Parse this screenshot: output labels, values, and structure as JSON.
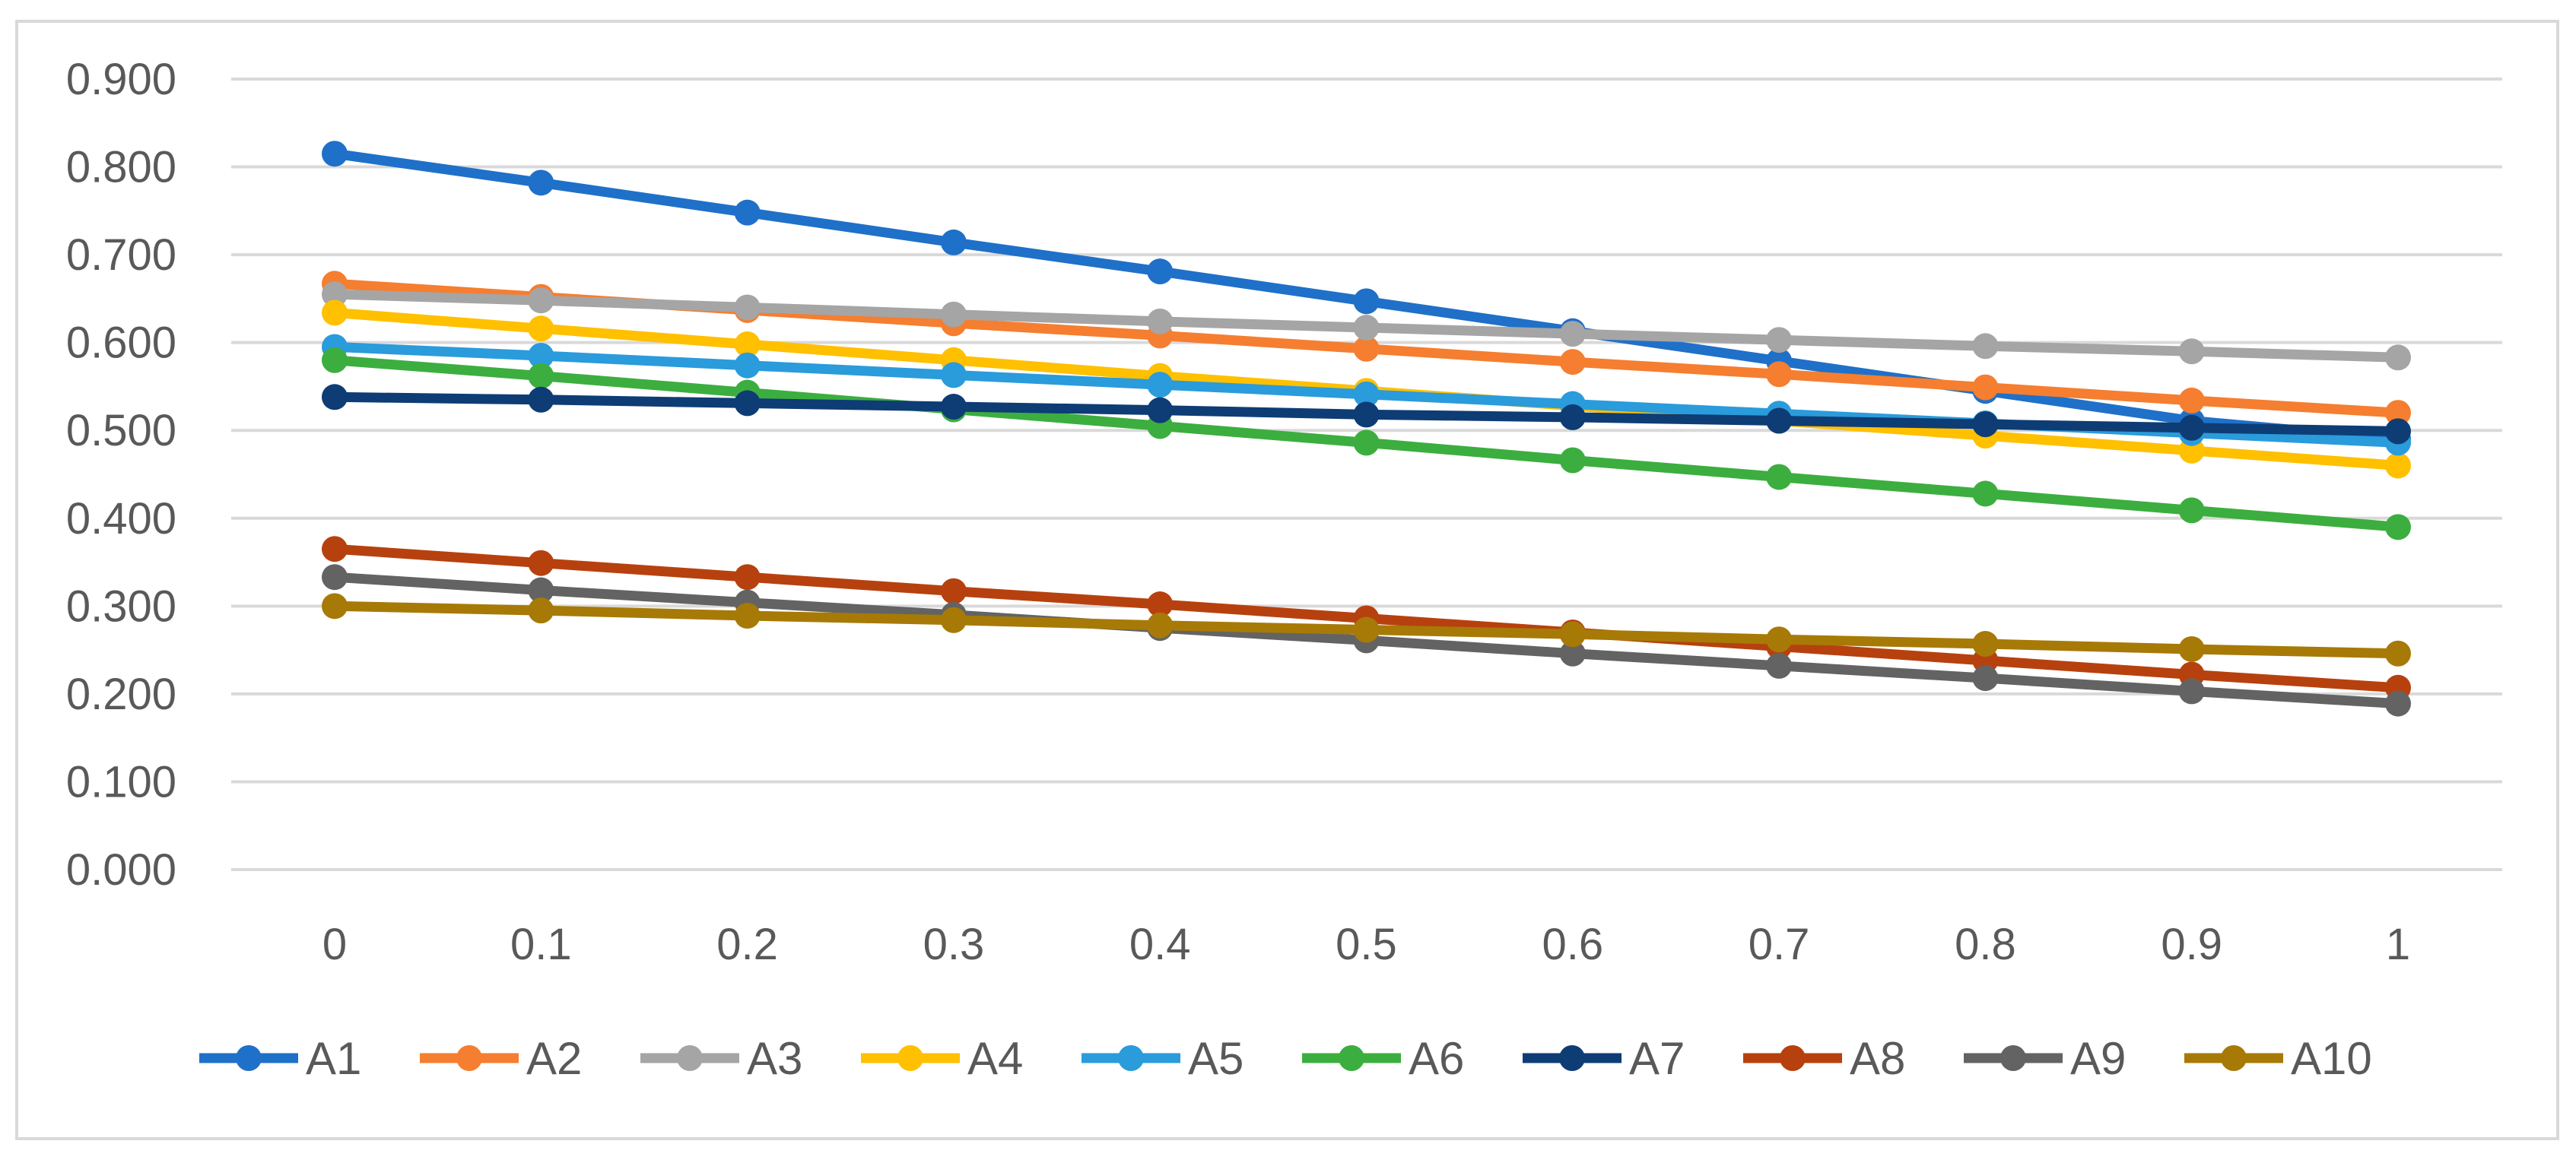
{
  "chart_data": {
    "type": "line",
    "title": "",
    "xlabel": "",
    "ylabel": "",
    "x": [
      "0",
      "0.1",
      "0.2",
      "0.3",
      "0.4",
      "0.5",
      "0.6",
      "0.7",
      "0.8",
      "0.9",
      "1"
    ],
    "ylim": [
      0,
      0.9
    ],
    "y_ticks": [
      "0.000",
      "0.100",
      "0.200",
      "0.300",
      "0.400",
      "0.500",
      "0.600",
      "0.700",
      "0.800",
      "0.900"
    ],
    "grid": true,
    "legend_position": "bottom",
    "series": [
      {
        "name": "A1",
        "color": "#1F70C8",
        "values": [
          0.815,
          0.782,
          0.748,
          0.714,
          0.681,
          0.647,
          0.613,
          0.579,
          0.545,
          0.511,
          0.49
        ]
      },
      {
        "name": "A2",
        "color": "#F57E30",
        "values": [
          0.667,
          0.652,
          0.637,
          0.622,
          0.608,
          0.593,
          0.578,
          0.564,
          0.549,
          0.534,
          0.52
        ]
      },
      {
        "name": "A3",
        "color": "#A5A5A5",
        "values": [
          0.655,
          0.648,
          0.64,
          0.632,
          0.624,
          0.617,
          0.61,
          0.603,
          0.596,
          0.59,
          0.583
        ]
      },
      {
        "name": "A4",
        "color": "#FFC000",
        "values": [
          0.634,
          0.616,
          0.598,
          0.58,
          0.562,
          0.545,
          0.528,
          0.511,
          0.494,
          0.477,
          0.46
        ]
      },
      {
        "name": "A5",
        "color": "#2A9BDB",
        "values": [
          0.595,
          0.585,
          0.574,
          0.563,
          0.552,
          0.541,
          0.53,
          0.519,
          0.508,
          0.497,
          0.486
        ]
      },
      {
        "name": "A6",
        "color": "#3CAE3F",
        "values": [
          0.58,
          0.562,
          0.543,
          0.524,
          0.505,
          0.486,
          0.466,
          0.447,
          0.428,
          0.409,
          0.39
        ]
      },
      {
        "name": "A7",
        "color": "#0E3C75",
        "values": [
          0.538,
          0.535,
          0.531,
          0.527,
          0.523,
          0.518,
          0.515,
          0.511,
          0.507,
          0.503,
          0.499
        ]
      },
      {
        "name": "A8",
        "color": "#B7410E",
        "values": [
          0.365,
          0.349,
          0.333,
          0.317,
          0.302,
          0.286,
          0.27,
          0.254,
          0.238,
          0.222,
          0.207
        ]
      },
      {
        "name": "A9",
        "color": "#636363",
        "values": [
          0.333,
          0.318,
          0.304,
          0.29,
          0.275,
          0.261,
          0.246,
          0.232,
          0.218,
          0.203,
          0.189
        ]
      },
      {
        "name": "A10",
        "color": "#A77A07",
        "values": [
          0.3,
          0.295,
          0.289,
          0.284,
          0.278,
          0.273,
          0.268,
          0.262,
          0.257,
          0.251,
          0.246
        ]
      }
    ]
  }
}
